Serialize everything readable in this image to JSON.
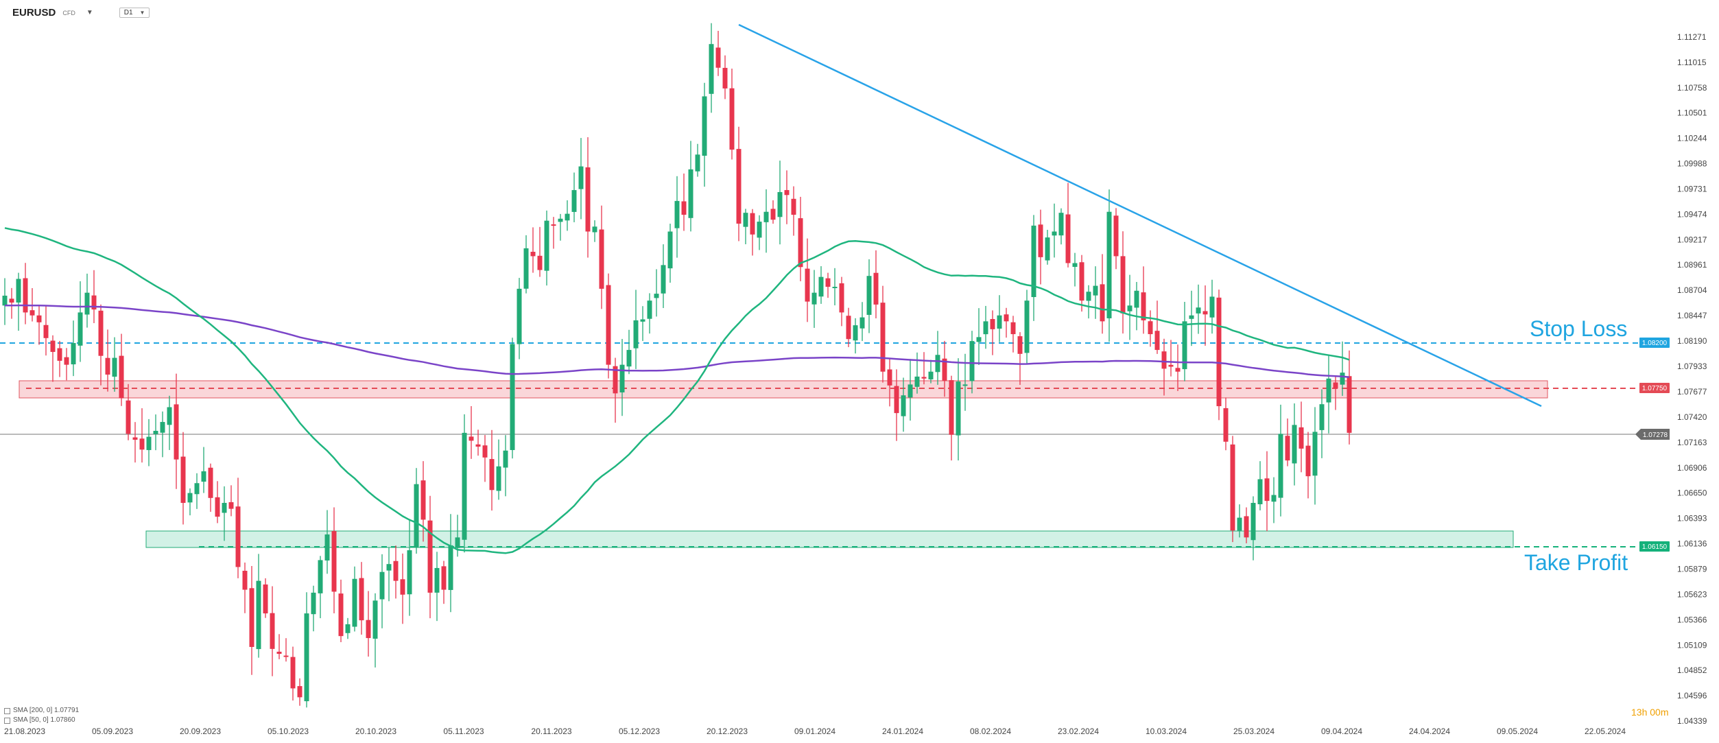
{
  "header": {
    "symbol": "EURUSD",
    "symbol_type": "CFD",
    "timeframe": "D1"
  },
  "legend": {
    "sma200": "SMA [200, 0] 1.07791",
    "sma50": "SMA [50, 0] 1.07860"
  },
  "timer": {
    "hours": "13h",
    "minutes": "00m"
  },
  "colors": {
    "bull": "#22ab76",
    "bear": "#e8364e",
    "sma50": "#1fb57f",
    "sma200": "#7a44c8",
    "trendline": "#29a3e8",
    "stoploss": "#1fa5e0",
    "entry": "#e44a55",
    "takeprofit": "#14b17a",
    "current": "#6b6b6b"
  },
  "chart_data": {
    "type": "candlestick",
    "ylim": [
      1.0425,
      1.1142
    ],
    "y_ticks": [
      "1.11271",
      "1.11015",
      "1.10758",
      "1.10501",
      "1.10244",
      "1.09988",
      "1.09731",
      "1.09474",
      "1.09217",
      "1.08961",
      "1.08704",
      "1.08447",
      "1.08190",
      "1.07933",
      "1.07677",
      "1.07420",
      "1.07163",
      "1.06906",
      "1.06650",
      "1.06393",
      "1.06136",
      "1.05879",
      "1.05623",
      "1.05366",
      "1.05109",
      "1.04852",
      "1.04596",
      "1.04339"
    ],
    "x_tick_labels": [
      "21.08.2023",
      "05.09.2023",
      "20.09.2023",
      "05.10.2023",
      "20.10.2023",
      "05.11.2023",
      "20.11.2023",
      "05.12.2023",
      "20.12.2023",
      "09.01.2024",
      "24.01.2024",
      "08.02.2024",
      "23.02.2024",
      "10.03.2024",
      "25.03.2024",
      "09.04.2024",
      "24.04.2024",
      "09.05.2024",
      "22.05.2024"
    ],
    "levels": {
      "stop_loss": {
        "label": "Stop Loss",
        "price": 1.082,
        "tag": "1.08200"
      },
      "entry": {
        "price": 1.0775,
        "tag": "1.07750"
      },
      "take_profit": {
        "label": "Take Profit",
        "price": 1.0615,
        "tag": "1.06150"
      },
      "current": {
        "price": 1.07278,
        "tag": "1.07278"
      }
    },
    "zones": {
      "resistance": {
        "y_low": 1.0768,
        "y_high": 1.0785
      },
      "support": {
        "y_low": 1.0615,
        "y_high": 1.0631
      }
    },
    "trendline": {
      "start": [
        "21.12.2023",
        1.1133
      ],
      "end": [
        "15.05.2024",
        1.0758
      ]
    },
    "closes": [
      1.0865,
      1.0858,
      1.0882,
      1.0848,
      1.0845,
      1.0838,
      1.0822,
      1.0808,
      1.0799,
      1.0795,
      1.0817,
      1.0848,
      1.0868,
      1.0851,
      1.0804,
      1.0785,
      1.0802,
      1.0761,
      1.0725,
      1.0719,
      1.0709,
      1.0722,
      1.0728,
      1.0737,
      1.0752,
      1.0699,
      1.0655,
      1.0665,
      1.0675,
      1.0687,
      1.066,
      1.0641,
      1.0655,
      1.0649,
      1.059,
      1.0567,
      1.0509,
      1.0576,
      1.0543,
      1.0507,
      1.0502,
      1.05,
      1.0467,
      1.0458,
      1.0543,
      1.0564,
      1.0597,
      1.0623,
      1.0565,
      1.052,
      1.0532,
      1.0578,
      1.0536,
      1.0518,
      1.0556,
      1.0585,
      1.0593,
      1.0576,
      1.0562,
      1.0607,
      1.0674,
      1.0638,
      1.0564,
      1.0589,
      1.0567,
      1.0612,
      1.062,
      1.0726,
      1.0718,
      1.0712,
      1.0701,
      1.0668,
      1.0692,
      1.0708,
      1.0816,
      1.0872,
      1.0913,
      1.0905,
      1.0891,
      1.0941,
      1.0937,
      1.0943,
      1.0948,
      1.0972,
      1.0996,
      1.093,
      1.0935,
      1.0872,
      1.0795,
      1.0766,
      1.0795,
      1.081,
      1.084,
      1.0841,
      1.086,
      1.0867,
      1.0896,
      1.093,
      1.0961,
      1.0947,
      1.0993,
      1.1008,
      1.1067,
      1.112,
      1.1096,
      1.1075,
      1.1013,
      1.0938,
      1.0949,
      1.0927,
      1.094,
      1.095,
      1.0942,
      1.097,
      1.0967,
      1.0947,
      1.0894,
      1.0859,
      1.0868,
      1.0884,
      1.0874,
      1.0874,
      1.0848,
      1.0821,
      1.0835,
      1.0843,
      1.0885,
      1.0856,
      1.0788,
      1.0774,
      1.0746,
      1.0764,
      1.0775,
      1.0783,
      1.0781,
      1.0788,
      1.0805,
      1.0779,
      1.0724,
      1.0778,
      1.0775,
      1.0819,
      1.0823,
      1.0839,
      1.0831,
      1.0845,
      1.0839,
      1.0826,
      1.0806,
      1.086,
      1.0936,
      1.0904,
      1.0924,
      1.093,
      1.0949,
      1.0898,
      1.0898,
      1.086,
      1.0869,
      1.0875,
      1.0839,
      1.095,
      1.0905,
      1.0847,
      1.0855,
      1.087,
      1.084,
      1.0826,
      1.081,
      1.0791,
      1.0793,
      1.0788,
      1.0839,
      1.0845,
      1.0853,
      1.0846,
      1.0864,
      1.0753,
      1.0717,
      1.0627,
      1.064,
      1.062,
      1.0655,
      1.0679,
      1.0657,
      1.0663,
      1.0725,
      1.0698,
      1.0734,
      1.071,
      1.0682,
      1.0727,
      1.0755,
      1.0781,
      1.0771,
      1.0787,
      1.0726
    ]
  }
}
